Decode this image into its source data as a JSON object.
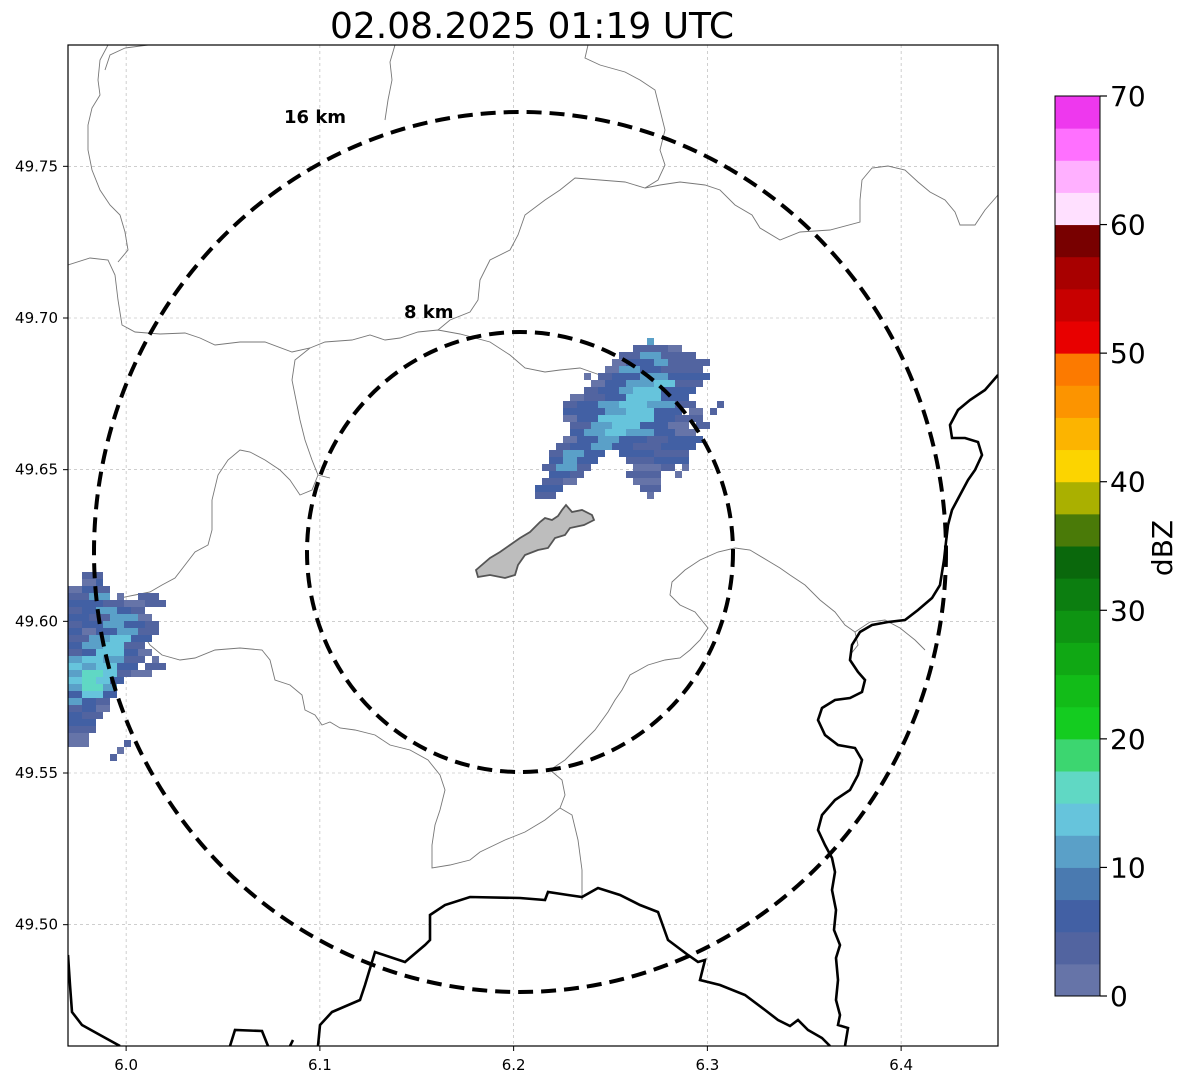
{
  "title": "02.08.2025 01:19 UTC",
  "map": {
    "x_ticks": [
      "6.0",
      "6.1",
      "6.2",
      "6.3",
      "6.4"
    ],
    "y_ticks": [
      "49.75",
      "49.70",
      "49.65",
      "49.60",
      "49.55",
      "49.50"
    ],
    "lon_range": [
      5.97,
      6.45
    ],
    "lat_range": [
      49.46,
      49.79
    ],
    "center": {
      "lon": 6.205,
      "lat": 49.623
    },
    "rings": [
      {
        "label": "8 km",
        "radius_km": 8
      },
      {
        "label": "16 km",
        "radius_km": 16
      }
    ],
    "grid": true
  },
  "colorbar": {
    "label": "dBZ",
    "ticks": [
      "0",
      "10",
      "20",
      "30",
      "40",
      "50",
      "60",
      "70"
    ],
    "range": [
      0,
      70
    ],
    "colors": [
      "#6674a8",
      "#5264a0",
      "#4260a4",
      "#4a7ab0",
      "#5aa0c8",
      "#66c4dc",
      "#60d8c4",
      "#3cd670",
      "#14cc20",
      "#12bc18",
      "#10a814",
      "#0e9412",
      "#0c7e10",
      "#0a680c",
      "#4a7a08",
      "#aab000",
      "#fcd400",
      "#fcb400",
      "#fc9400",
      "#fc7a00",
      "#e80000",
      "#c80000",
      "#a80000",
      "#780000",
      "#ffe0ff",
      "#ffb0ff",
      "#ff70ff",
      "#ee38ee"
    ]
  },
  "echo_colors": {
    "c1": "#6674a8",
    "c2": "#5264a0",
    "c3": "#4260a4",
    "c4": "#5aa0c8",
    "c5": "#66c4dc",
    "c6": "#60d8c4"
  }
}
